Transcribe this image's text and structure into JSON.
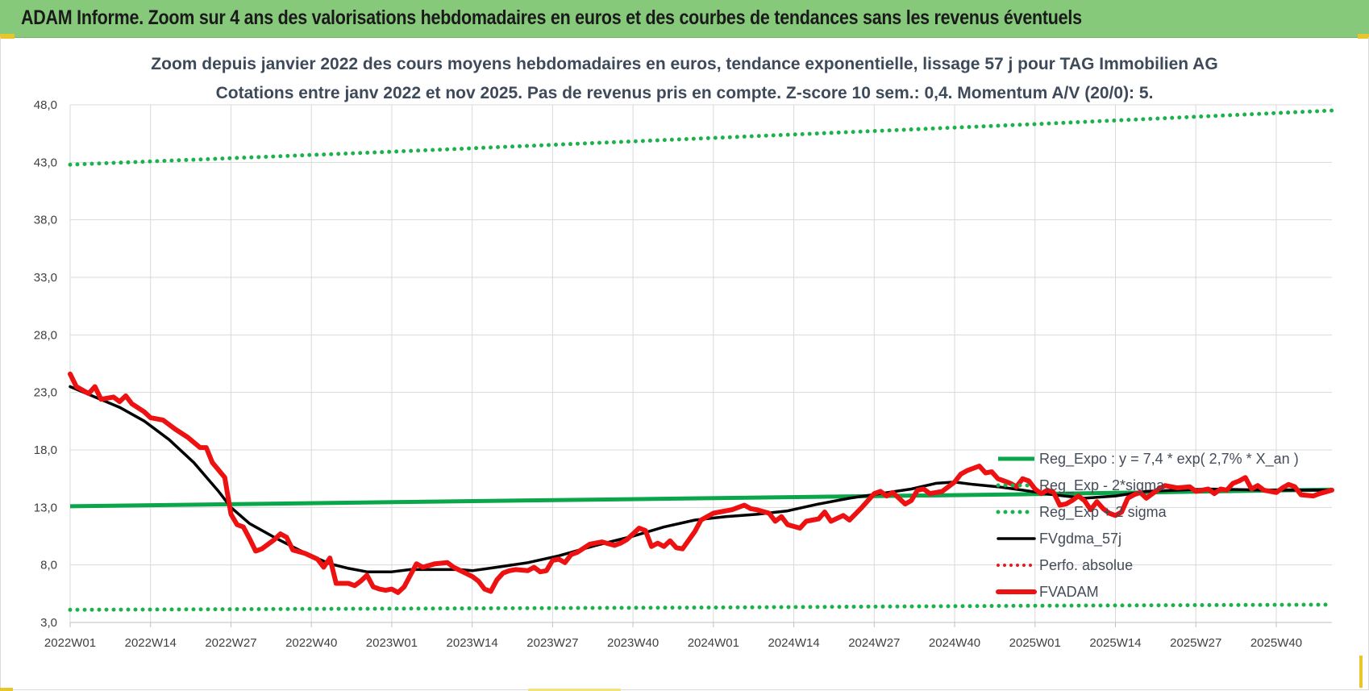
{
  "header": {
    "title": "ADAM Informe. Zoom sur 4 ans des valorisations hebdomadaires en euros et des courbes de tendances sans les revenus éventuels"
  },
  "colors": {
    "header_bg": "#86c97b",
    "reg_green": "#0aa64a",
    "sigma_green": "#1cb24b",
    "smooth_black": "#000000",
    "price_red": "#ee1111",
    "perfo_red": "#e31b1b"
  },
  "chart_data": {
    "type": "line",
    "title": "Zoom depuis janvier 2022 des cours moyens hebdomadaires en euros, tendance exponentielle, lissage 57 j pour TAG Immobilien AG",
    "subtitle": "Cotations entre janv 2022 et nov 2025. Pas de revenus pris en compte. Z-score 10 sem.: 0,4. Momentum A/V (20/0): 5.",
    "xlabel": "",
    "ylabel": "",
    "ylim": [
      3.0,
      48.0
    ],
    "y_ticks": [
      "3,0",
      "8,0",
      "13,0",
      "18,0",
      "23,0",
      "28,0",
      "33,0",
      "38,0",
      "43,0",
      "48,0"
    ],
    "x_ticks": [
      "2022W01",
      "2022W14",
      "2022W27",
      "2022W40",
      "2023W01",
      "2023W14",
      "2023W27",
      "2023W40",
      "2024W01",
      "2024W14",
      "2024W27",
      "2024W40",
      "2025W01",
      "2025W14",
      "2025W27",
      "2025W40"
    ],
    "x_week_range": [
      1,
      205
    ],
    "grid": true,
    "legend_position": "right",
    "series": [
      {
        "name": "Reg_Expo : y = 7,4 * exp( 2,7% *  X_an )",
        "style": "solid",
        "points": [
          [
            1,
            13.1
          ],
          [
            52,
            13.45
          ],
          [
            104,
            13.8
          ],
          [
            156,
            14.15
          ],
          [
            205,
            14.55
          ]
        ]
      },
      {
        "name": "Reg_Exp - 2*sigma",
        "style": "dotted",
        "points": [
          [
            1,
            4.1
          ],
          [
            52,
            4.2
          ],
          [
            104,
            4.3
          ],
          [
            156,
            4.45
          ],
          [
            205,
            4.55
          ]
        ]
      },
      {
        "name": "Reg_Exp + 2 sigma",
        "style": "dotted",
        "points": [
          [
            1,
            42.8
          ],
          [
            52,
            43.9
          ],
          [
            104,
            45.1
          ],
          [
            156,
            46.3
          ],
          [
            205,
            47.5
          ]
        ]
      },
      {
        "name": "FVgdma_57j",
        "style": "solid",
        "points": [
          [
            1,
            23.5
          ],
          [
            5,
            22.6
          ],
          [
            9,
            21.7
          ],
          [
            13,
            20.5
          ],
          [
            17,
            18.9
          ],
          [
            21,
            16.9
          ],
          [
            25,
            14.4
          ],
          [
            27,
            13.0
          ],
          [
            30,
            11.6
          ],
          [
            34,
            10.4
          ],
          [
            38,
            9.3
          ],
          [
            40,
            8.8
          ],
          [
            43,
            8.1
          ],
          [
            46,
            7.7
          ],
          [
            49,
            7.4
          ],
          [
            53,
            7.4
          ],
          [
            56,
            7.6
          ],
          [
            60,
            7.6
          ],
          [
            64,
            7.6
          ],
          [
            66,
            7.5
          ],
          [
            70,
            7.8
          ],
          [
            75,
            8.2
          ],
          [
            80,
            8.8
          ],
          [
            86,
            9.7
          ],
          [
            92,
            10.5
          ],
          [
            97,
            11.3
          ],
          [
            102,
            11.9
          ],
          [
            107,
            12.2
          ],
          [
            112,
            12.4
          ],
          [
            117,
            12.7
          ],
          [
            122,
            13.3
          ],
          [
            127,
            13.8
          ],
          [
            132,
            14.2
          ],
          [
            137,
            14.6
          ],
          [
            141,
            15.1
          ],
          [
            144,
            15.2
          ],
          [
            147,
            15.0
          ],
          [
            151,
            14.8
          ],
          [
            155,
            14.5
          ],
          [
            160,
            14.1
          ],
          [
            165,
            13.8
          ],
          [
            170,
            14.0
          ],
          [
            175,
            14.4
          ],
          [
            185,
            14.6
          ],
          [
            195,
            14.5
          ],
          [
            205,
            14.5
          ]
        ]
      },
      {
        "name": "Perfo. absolue",
        "style": "dotted",
        "points": []
      },
      {
        "name": "FVADAM",
        "style": "solid",
        "points": [
          [
            1,
            24.6
          ],
          [
            2,
            23.5
          ],
          [
            4,
            22.9
          ],
          [
            5,
            23.5
          ],
          [
            6,
            22.4
          ],
          [
            8,
            22.6
          ],
          [
            9,
            22.2
          ],
          [
            10,
            22.7
          ],
          [
            11,
            22.0
          ],
          [
            13,
            21.3
          ],
          [
            14,
            20.8
          ],
          [
            16,
            20.6
          ],
          [
            18,
            19.8
          ],
          [
            20,
            19.1
          ],
          [
            22,
            18.2
          ],
          [
            23,
            18.2
          ],
          [
            24,
            16.9
          ],
          [
            26,
            15.6
          ],
          [
            27,
            12.4
          ],
          [
            28,
            11.5
          ],
          [
            29,
            11.3
          ],
          [
            30,
            10.3
          ],
          [
            31,
            9.2
          ],
          [
            32,
            9.4
          ],
          [
            34,
            10.2
          ],
          [
            35,
            10.7
          ],
          [
            36,
            10.4
          ],
          [
            37,
            9.3
          ],
          [
            39,
            9.0
          ],
          [
            41,
            8.5
          ],
          [
            42,
            7.8
          ],
          [
            43,
            8.6
          ],
          [
            44,
            6.4
          ],
          [
            46,
            6.4
          ],
          [
            47,
            6.2
          ],
          [
            48,
            6.6
          ],
          [
            49,
            7.1
          ],
          [
            50,
            6.1
          ],
          [
            51,
            5.9
          ],
          [
            52,
            5.8
          ],
          [
            53,
            5.9
          ],
          [
            54,
            5.6
          ],
          [
            55,
            6.1
          ],
          [
            56,
            7.1
          ],
          [
            57,
            8.1
          ],
          [
            58,
            7.8
          ],
          [
            60,
            8.1
          ],
          [
            62,
            8.2
          ],
          [
            63,
            7.8
          ],
          [
            66,
            7.0
          ],
          [
            67,
            6.6
          ],
          [
            68,
            5.9
          ],
          [
            69,
            5.7
          ],
          [
            70,
            6.7
          ],
          [
            71,
            7.3
          ],
          [
            72,
            7.5
          ],
          [
            73,
            7.6
          ],
          [
            75,
            7.5
          ],
          [
            76,
            7.8
          ],
          [
            77,
            7.4
          ],
          [
            78,
            7.5
          ],
          [
            79,
            8.4
          ],
          [
            80,
            8.5
          ],
          [
            81,
            8.2
          ],
          [
            82,
            8.9
          ],
          [
            83,
            9.1
          ],
          [
            85,
            9.8
          ],
          [
            87,
            10.0
          ],
          [
            89,
            9.7
          ],
          [
            90,
            9.9
          ],
          [
            91,
            10.2
          ],
          [
            93,
            11.2
          ],
          [
            94,
            11.0
          ],
          [
            95,
            9.6
          ],
          [
            96,
            9.9
          ],
          [
            97,
            9.6
          ],
          [
            98,
            10.1
          ],
          [
            99,
            9.5
          ],
          [
            100,
            9.4
          ],
          [
            102,
            10.9
          ],
          [
            103,
            11.9
          ],
          [
            105,
            12.5
          ],
          [
            107,
            12.7
          ],
          [
            108,
            12.8
          ],
          [
            110,
            13.2
          ],
          [
            111,
            12.9
          ],
          [
            112,
            12.8
          ],
          [
            114,
            12.5
          ],
          [
            115,
            11.8
          ],
          [
            116,
            12.2
          ],
          [
            117,
            11.5
          ],
          [
            119,
            11.2
          ],
          [
            120,
            11.8
          ],
          [
            121,
            11.9
          ],
          [
            122,
            12.0
          ],
          [
            123,
            12.6
          ],
          [
            124,
            11.8
          ],
          [
            126,
            12.3
          ],
          [
            127,
            11.9
          ],
          [
            129,
            13.0
          ],
          [
            131,
            14.2
          ],
          [
            132,
            14.4
          ],
          [
            133,
            14.0
          ],
          [
            134,
            14.3
          ],
          [
            135,
            13.8
          ],
          [
            136,
            13.3
          ],
          [
            137,
            13.6
          ],
          [
            138,
            14.5
          ],
          [
            139,
            14.6
          ],
          [
            140,
            14.2
          ],
          [
            142,
            14.4
          ],
          [
            144,
            15.2
          ],
          [
            145,
            15.9
          ],
          [
            146,
            16.2
          ],
          [
            148,
            16.6
          ],
          [
            149,
            16.0
          ],
          [
            150,
            16.1
          ],
          [
            151,
            15.5
          ],
          [
            152,
            15.3
          ],
          [
            153,
            15.1
          ],
          [
            154,
            14.8
          ],
          [
            155,
            15.5
          ],
          [
            156,
            15.3
          ],
          [
            157,
            14.6
          ],
          [
            158,
            14.2
          ],
          [
            159,
            14.5
          ],
          [
            160,
            14.3
          ],
          [
            161,
            13.2
          ],
          [
            162,
            13.3
          ],
          [
            163,
            13.6
          ],
          [
            164,
            14.0
          ],
          [
            165,
            13.6
          ],
          [
            166,
            12.8
          ],
          [
            167,
            13.5
          ],
          [
            168,
            12.9
          ],
          [
            169,
            12.5
          ],
          [
            170,
            12.3
          ],
          [
            171,
            12.6
          ],
          [
            172,
            13.8
          ],
          [
            173,
            14.1
          ],
          [
            174,
            14.3
          ],
          [
            175,
            13.8
          ],
          [
            176,
            14.2
          ],
          [
            177,
            14.6
          ],
          [
            178,
            14.9
          ],
          [
            180,
            14.7
          ],
          [
            182,
            14.8
          ],
          [
            183,
            14.4
          ],
          [
            185,
            14.6
          ],
          [
            186,
            14.2
          ],
          [
            187,
            14.6
          ],
          [
            188,
            14.5
          ],
          [
            189,
            15.1
          ],
          [
            190,
            15.3
          ],
          [
            191,
            15.6
          ],
          [
            192,
            14.6
          ],
          [
            193,
            14.9
          ],
          [
            194,
            14.5
          ],
          [
            196,
            14.3
          ],
          [
            197,
            14.7
          ],
          [
            198,
            15.0
          ],
          [
            199,
            14.8
          ],
          [
            200,
            14.1
          ],
          [
            202,
            14.0
          ],
          [
            203,
            14.2
          ],
          [
            205,
            14.5
          ]
        ]
      }
    ]
  }
}
